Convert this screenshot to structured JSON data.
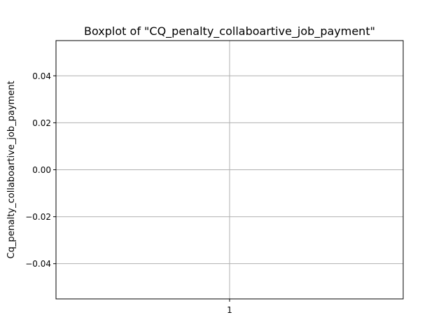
{
  "chart_data": {
    "type": "box",
    "title": "Boxplot of \"CQ_penalty_collaboartive_job_payment\"",
    "xlabel": "",
    "ylabel": "Cq_penalty_collaboartive_job_payment",
    "categories": [
      "1"
    ],
    "series": [
      {
        "values": []
      }
    ],
    "ylim": [
      -0.055,
      0.055
    ],
    "yticks": [
      0.04,
      0.02,
      0.0,
      -0.02,
      -0.04
    ],
    "ytick_labels": [
      "0.04",
      "0.02",
      "0.00",
      "−0.02",
      "−0.04"
    ],
    "grid": true,
    "legend": "none"
  }
}
